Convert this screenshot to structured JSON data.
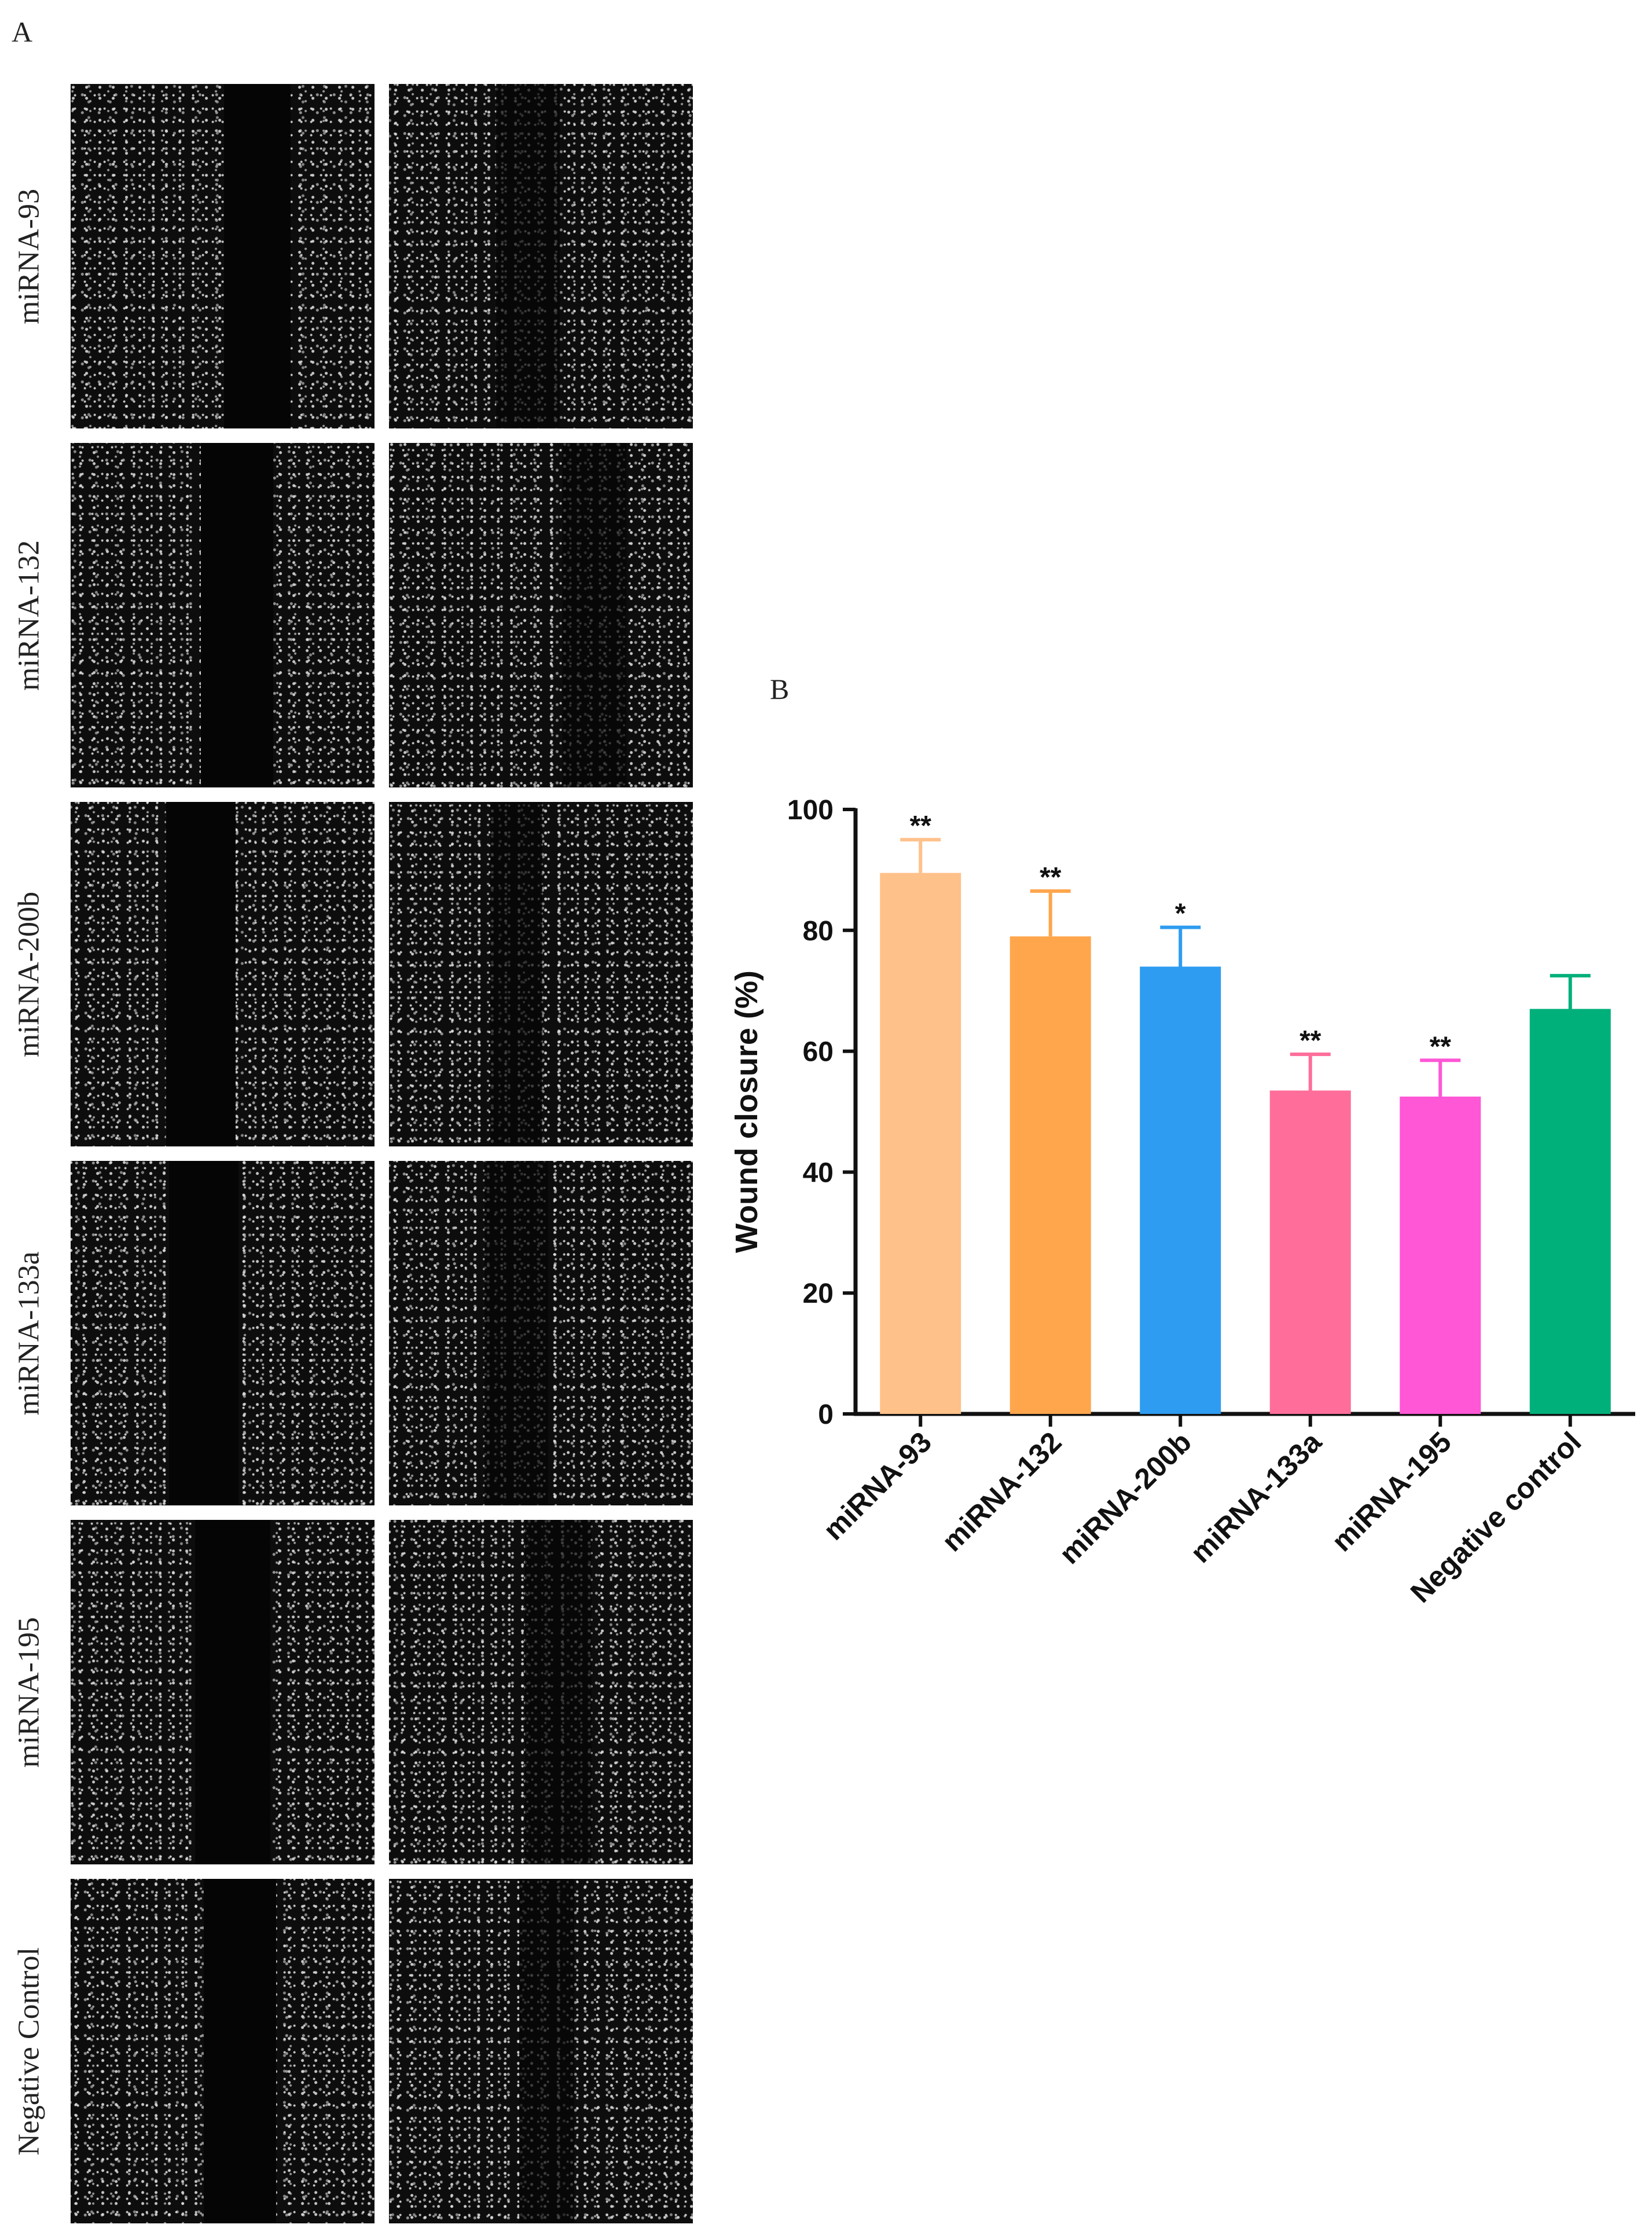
{
  "panel_a": {
    "letter": "A",
    "rows": [
      {
        "label": "miRNA-93"
      },
      {
        "label": "miRNA-132"
      },
      {
        "label": "miRNA-200b"
      },
      {
        "label": "miRNA-133a"
      },
      {
        "label": "miRNA-195"
      },
      {
        "label": "Negative Control"
      }
    ]
  },
  "panel_b": {
    "letter": "B"
  },
  "chart_data": {
    "type": "bar",
    "categories": [
      "miRNA-93",
      "miRNA-132",
      "miRNA-200b",
      "miRNA-133a",
      "miRNA-195",
      "Negative control"
    ],
    "values": [
      89.5,
      79,
      74,
      53.5,
      52.5,
      67
    ],
    "errors": [
      5.5,
      7.5,
      6.5,
      6,
      6,
      5.5
    ],
    "significance": [
      "**",
      "**",
      "*",
      "**",
      "**",
      ""
    ],
    "colors": [
      "#FFC18A",
      "#FFA64D",
      "#2E9CF0",
      "#FF6E9A",
      "#FF57D6",
      "#00B07A"
    ],
    "ylabel": "Wound closure (%)",
    "xlabel": "",
    "ylim": [
      0,
      100
    ],
    "yticks": [
      0,
      20,
      40,
      60,
      80,
      100
    ],
    "grid": false
  }
}
